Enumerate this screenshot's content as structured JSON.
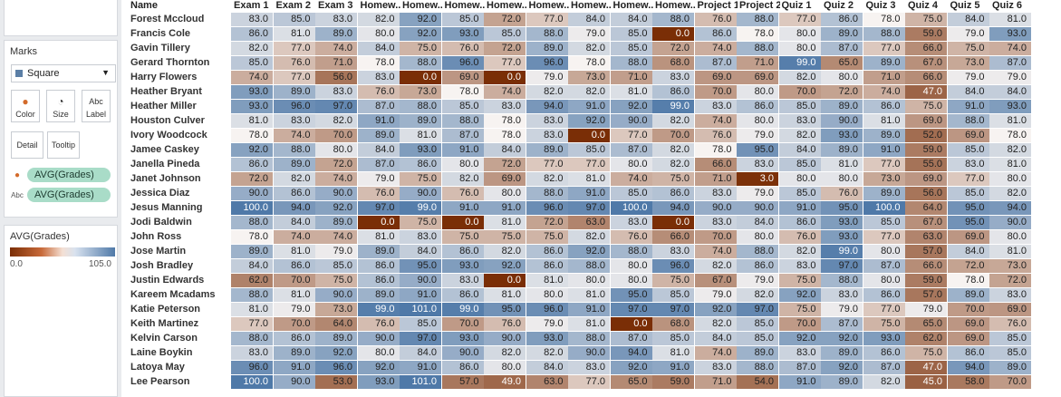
{
  "marks": {
    "title": "Marks",
    "mark_type": "Square",
    "buttons": [
      "Color",
      "Size",
      "Label",
      "Detail",
      "Tooltip"
    ],
    "fields": [
      "AVG(Grades)",
      "AVG(Grades)"
    ]
  },
  "legend": {
    "title": "AVG(Grades)",
    "min_label": "0.0",
    "max_label": "105.0",
    "colors": {
      "low": "#7a2e06",
      "mid": "#f7f3f1",
      "high": "#4f79a8"
    }
  },
  "table": {
    "row_header": "Name",
    "columns": [
      "Exam 1",
      "Exam 2",
      "Exam 3",
      "Homew..",
      "Homew..",
      "Homew..",
      "Homew..",
      "Homew..",
      "Homew..",
      "Homew..",
      "Homew..",
      "Project 1",
      "Project 2",
      "Quiz 1",
      "Quiz 2",
      "Quiz 3",
      "Quiz 4",
      "Quiz 5",
      "Quiz 6"
    ],
    "rows": [
      {
        "name": "Forest Mccloud",
        "values": [
          "83.0",
          "85.0",
          "83.0",
          "82.0",
          "92.0",
          "85.0",
          "72.0",
          "77.0",
          "84.0",
          "84.0",
          "88.0",
          "76.0",
          "88.0",
          "77.0",
          "86.0",
          "78.0",
          "75.0",
          "84.0",
          "81.0"
        ]
      },
      {
        "name": "Francis Cole",
        "values": [
          "86.0",
          "81.0",
          "89.0",
          "80.0",
          "92.0",
          "93.0",
          "85.0",
          "88.0",
          "79.0",
          "85.0",
          "0.0",
          "86.0",
          "78.0",
          "80.0",
          "89.0",
          "88.0",
          "59.0",
          "79.0",
          "93.0"
        ]
      },
      {
        "name": "Gavin Tillery",
        "values": [
          "82.0",
          "77.0",
          "74.0",
          "84.0",
          "75.0",
          "76.0",
          "72.0",
          "89.0",
          "82.0",
          "85.0",
          "72.0",
          "74.0",
          "88.0",
          "80.0",
          "87.0",
          "77.0",
          "66.0",
          "75.0",
          "74.0"
        ]
      },
      {
        "name": "Gerard Thornton",
        "values": [
          "85.0",
          "76.0",
          "71.0",
          "78.0",
          "88.0",
          "96.0",
          "77.0",
          "96.0",
          "78.0",
          "88.0",
          "68.0",
          "87.0",
          "71.0",
          "99.0",
          "65.0",
          "89.0",
          "67.0",
          "73.0",
          "87.0"
        ]
      },
      {
        "name": "Harry Flowers",
        "values": [
          "74.0",
          "77.0",
          "56.0",
          "83.0",
          "0.0",
          "69.0",
          "0.0",
          "79.0",
          "73.0",
          "71.0",
          "83.0",
          "69.0",
          "69.0",
          "82.0",
          "80.0",
          "71.0",
          "66.0",
          "79.0",
          "79.0"
        ]
      },
      {
        "name": "Heather Bryant",
        "values": [
          "93.0",
          "89.0",
          "83.0",
          "76.0",
          "73.0",
          "78.0",
          "74.0",
          "82.0",
          "82.0",
          "81.0",
          "86.0",
          "70.0",
          "80.0",
          "70.0",
          "72.0",
          "74.0",
          "47.0",
          "84.0",
          "84.0"
        ]
      },
      {
        "name": "Heather Miller",
        "values": [
          "93.0",
          "96.0",
          "97.0",
          "87.0",
          "88.0",
          "85.0",
          "83.0",
          "94.0",
          "91.0",
          "92.0",
          "99.0",
          "83.0",
          "86.0",
          "85.0",
          "89.0",
          "86.0",
          "75.0",
          "91.0",
          "93.0"
        ]
      },
      {
        "name": "Houston Culver",
        "values": [
          "81.0",
          "83.0",
          "82.0",
          "91.0",
          "89.0",
          "88.0",
          "78.0",
          "83.0",
          "92.0",
          "90.0",
          "82.0",
          "74.0",
          "80.0",
          "83.0",
          "90.0",
          "81.0",
          "69.0",
          "88.0",
          "81.0"
        ]
      },
      {
        "name": "Ivory Woodcock",
        "values": [
          "78.0",
          "74.0",
          "70.0",
          "89.0",
          "81.0",
          "87.0",
          "78.0",
          "83.0",
          "0.0",
          "77.0",
          "70.0",
          "76.0",
          "79.0",
          "82.0",
          "93.0",
          "89.0",
          "52.0",
          "69.0",
          "78.0"
        ]
      },
      {
        "name": "Jamee Caskey",
        "values": [
          "92.0",
          "88.0",
          "80.0",
          "84.0",
          "93.0",
          "91.0",
          "84.0",
          "89.0",
          "85.0",
          "87.0",
          "82.0",
          "78.0",
          "95.0",
          "84.0",
          "89.0",
          "91.0",
          "59.0",
          "85.0",
          "82.0"
        ]
      },
      {
        "name": "Janella Pineda",
        "values": [
          "86.0",
          "89.0",
          "72.0",
          "87.0",
          "86.0",
          "80.0",
          "72.0",
          "77.0",
          "77.0",
          "80.0",
          "82.0",
          "66.0",
          "83.0",
          "85.0",
          "81.0",
          "77.0",
          "55.0",
          "83.0",
          "81.0"
        ]
      },
      {
        "name": "Janet Johnson",
        "values": [
          "72.0",
          "82.0",
          "74.0",
          "79.0",
          "75.0",
          "82.0",
          "69.0",
          "82.0",
          "81.0",
          "74.0",
          "75.0",
          "71.0",
          "3.0",
          "80.0",
          "80.0",
          "73.0",
          "69.0",
          "77.0",
          "80.0"
        ]
      },
      {
        "name": "Jessica Diaz",
        "values": [
          "90.0",
          "86.0",
          "90.0",
          "76.0",
          "90.0",
          "76.0",
          "80.0",
          "88.0",
          "91.0",
          "85.0",
          "86.0",
          "83.0",
          "79.0",
          "85.0",
          "76.0",
          "89.0",
          "56.0",
          "85.0",
          "82.0"
        ]
      },
      {
        "name": "Jesus Manning",
        "values": [
          "100.0",
          "94.0",
          "92.0",
          "97.0",
          "99.0",
          "91.0",
          "91.0",
          "96.0",
          "97.0",
          "100.0",
          "94.0",
          "90.0",
          "90.0",
          "91.0",
          "95.0",
          "100.0",
          "64.0",
          "95.0",
          "94.0"
        ]
      },
      {
        "name": "Jodi Baldwin",
        "values": [
          "88.0",
          "84.0",
          "89.0",
          "0.0",
          "75.0",
          "0.0",
          "81.0",
          "72.0",
          "63.0",
          "83.0",
          "0.0",
          "83.0",
          "84.0",
          "86.0",
          "93.0",
          "85.0",
          "67.0",
          "95.0",
          "90.0"
        ]
      },
      {
        "name": "John Ross",
        "values": [
          "78.0",
          "74.0",
          "74.0",
          "81.0",
          "83.0",
          "75.0",
          "75.0",
          "75.0",
          "82.0",
          "76.0",
          "66.0",
          "70.0",
          "80.0",
          "76.0",
          "93.0",
          "77.0",
          "63.0",
          "69.0",
          "80.0"
        ]
      },
      {
        "name": "Jose Martin",
        "values": [
          "89.0",
          "81.0",
          "79.0",
          "89.0",
          "84.0",
          "86.0",
          "82.0",
          "86.0",
          "92.0",
          "88.0",
          "83.0",
          "74.0",
          "88.0",
          "82.0",
          "99.0",
          "80.0",
          "57.0",
          "84.0",
          "81.0"
        ]
      },
      {
        "name": "Josh Bradley",
        "values": [
          "84.0",
          "86.0",
          "85.0",
          "86.0",
          "95.0",
          "93.0",
          "92.0",
          "86.0",
          "88.0",
          "80.0",
          "96.0",
          "82.0",
          "86.0",
          "83.0",
          "97.0",
          "87.0",
          "66.0",
          "72.0",
          "73.0"
        ]
      },
      {
        "name": "Justin Edwards",
        "values": [
          "62.0",
          "70.0",
          "75.0",
          "86.0",
          "90.0",
          "83.0",
          "0.0",
          "81.0",
          "80.0",
          "80.0",
          "75.0",
          "67.0",
          "79.0",
          "75.0",
          "88.0",
          "80.0",
          "59.0",
          "78.0",
          "72.0"
        ]
      },
      {
        "name": "Kareem Mcadams",
        "values": [
          "88.0",
          "81.0",
          "90.0",
          "89.0",
          "91.0",
          "86.0",
          "81.0",
          "80.0",
          "81.0",
          "95.0",
          "85.0",
          "79.0",
          "82.0",
          "92.0",
          "83.0",
          "86.0",
          "57.0",
          "89.0",
          "83.0"
        ]
      },
      {
        "name": "Katie Peterson",
        "values": [
          "81.0",
          "79.0",
          "73.0",
          "99.0",
          "101.0",
          "99.0",
          "95.0",
          "96.0",
          "91.0",
          "97.0",
          "97.0",
          "92.0",
          "97.0",
          "75.0",
          "79.0",
          "77.0",
          "79.0",
          "70.0",
          "69.0"
        ]
      },
      {
        "name": "Keith Martinez",
        "values": [
          "77.0",
          "70.0",
          "64.0",
          "76.0",
          "85.0",
          "70.0",
          "76.0",
          "79.0",
          "81.0",
          "0.0",
          "68.0",
          "82.0",
          "85.0",
          "70.0",
          "87.0",
          "75.0",
          "65.0",
          "69.0",
          "76.0"
        ]
      },
      {
        "name": "Kelvin Carson",
        "values": [
          "88.0",
          "86.0",
          "89.0",
          "90.0",
          "97.0",
          "93.0",
          "90.0",
          "93.0",
          "88.0",
          "87.0",
          "85.0",
          "84.0",
          "85.0",
          "92.0",
          "92.0",
          "93.0",
          "62.0",
          "69.0",
          "85.0"
        ]
      },
      {
        "name": "Laine Boykin",
        "values": [
          "83.0",
          "89.0",
          "92.0",
          "80.0",
          "84.0",
          "90.0",
          "82.0",
          "82.0",
          "90.0",
          "94.0",
          "81.0",
          "74.0",
          "89.0",
          "83.0",
          "89.0",
          "86.0",
          "75.0",
          "86.0",
          "85.0"
        ]
      },
      {
        "name": "Latoya May",
        "values": [
          "96.0",
          "91.0",
          "96.0",
          "92.0",
          "91.0",
          "86.0",
          "80.0",
          "84.0",
          "83.0",
          "92.0",
          "91.0",
          "83.0",
          "88.0",
          "87.0",
          "92.0",
          "87.0",
          "47.0",
          "94.0",
          "89.0"
        ]
      },
      {
        "name": "Lee Pearson",
        "values": [
          "100.0",
          "90.0",
          "53.0",
          "93.0",
          "101.0",
          "57.0",
          "49.0",
          "63.0",
          "77.0",
          "65.0",
          "59.0",
          "71.0",
          "54.0",
          "91.0",
          "89.0",
          "82.0",
          "45.0",
          "58.0",
          "70.0"
        ]
      }
    ]
  }
}
